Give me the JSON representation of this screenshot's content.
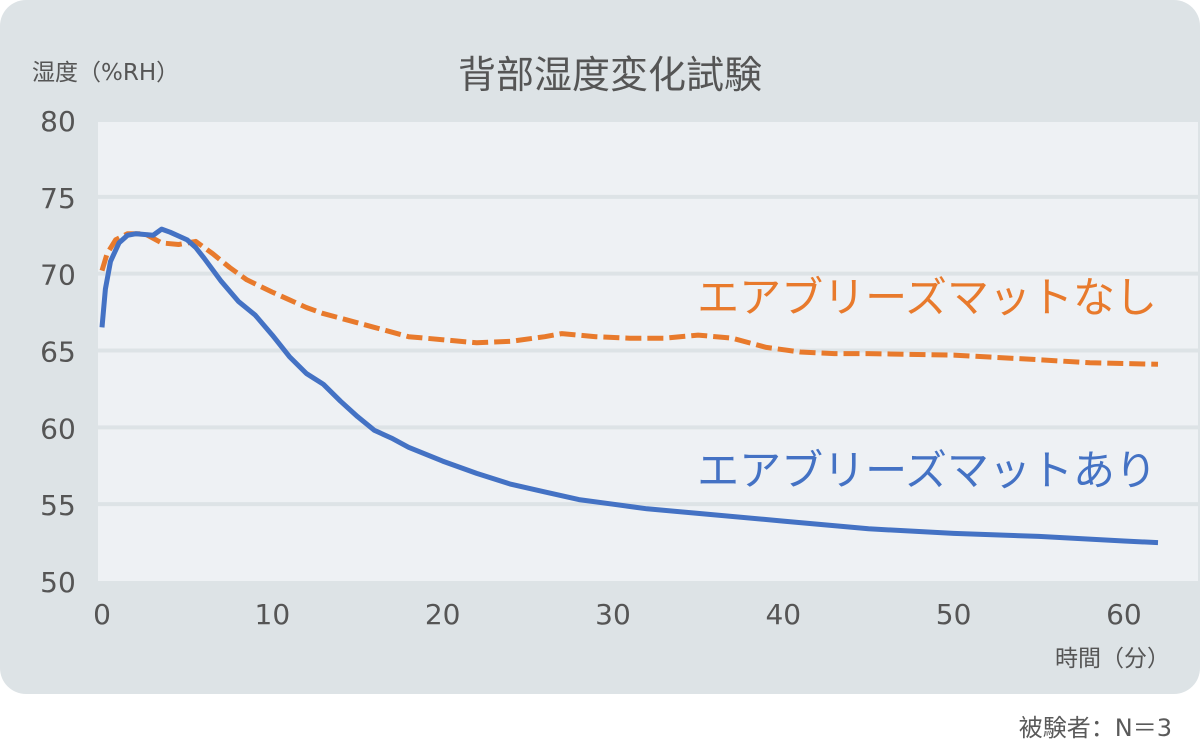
{
  "chart_data": {
    "type": "line",
    "title": "背部湿度変化試験",
    "ylabel": "湿度（%RH）",
    "xlabel": "時間（分）",
    "xlim": [
      0,
      62
    ],
    "ylim": [
      50,
      80
    ],
    "xticks": [
      0,
      10,
      20,
      30,
      40,
      50,
      60
    ],
    "yticks": [
      50,
      55,
      60,
      65,
      70,
      75,
      80
    ],
    "grid": true,
    "series": [
      {
        "name": "エアブリーズマットなし",
        "color": "#e87a2c",
        "style": "dashed",
        "x": [
          0,
          0.3,
          0.8,
          1.5,
          2.5,
          3.5,
          4.5,
          5.5,
          6.5,
          7.5,
          8.5,
          10,
          11,
          12,
          13,
          14,
          15,
          16,
          18,
          20,
          22,
          24,
          26,
          27,
          29,
          31,
          33,
          35,
          37,
          39,
          41,
          43,
          45,
          50,
          55,
          58,
          62
        ],
        "y": [
          70.2,
          71.3,
          72.2,
          72.6,
          72.6,
          72.0,
          71.9,
          72.1,
          71.3,
          70.4,
          69.6,
          68.8,
          68.3,
          67.8,
          67.4,
          67.1,
          66.8,
          66.5,
          65.9,
          65.7,
          65.5,
          65.6,
          65.9,
          66.1,
          65.9,
          65.8,
          65.8,
          66.0,
          65.8,
          65.2,
          64.9,
          64.8,
          64.8,
          64.7,
          64.4,
          64.2,
          64.1
        ]
      },
      {
        "name": "エアブリーズマットあり",
        "color": "#4472c4",
        "style": "solid",
        "x": [
          0,
          0.2,
          0.5,
          1,
          1.5,
          2,
          3,
          3.5,
          4,
          5,
          5.5,
          6,
          7,
          8,
          9,
          10,
          11,
          12,
          13,
          14,
          15,
          16,
          17,
          18,
          20,
          22,
          24,
          26,
          28,
          30,
          32,
          35,
          40,
          45,
          50,
          55,
          60,
          62
        ],
        "y": [
          66.5,
          69.0,
          70.8,
          72.0,
          72.5,
          72.6,
          72.5,
          72.9,
          72.7,
          72.2,
          71.7,
          71.0,
          69.5,
          68.2,
          67.3,
          66.0,
          64.6,
          63.5,
          62.8,
          61.7,
          60.7,
          59.8,
          59.3,
          58.7,
          57.8,
          57.0,
          56.3,
          55.8,
          55.3,
          55.0,
          54.7,
          54.4,
          53.9,
          53.4,
          53.1,
          52.9,
          52.6,
          52.5
        ]
      }
    ],
    "annotations": [
      {
        "text": "エアブリーズマットなし",
        "color": "#e87a2c"
      },
      {
        "text": "エアブリーズマットあり",
        "color": "#4472c4"
      }
    ]
  },
  "footnote": "被験者：N＝3"
}
